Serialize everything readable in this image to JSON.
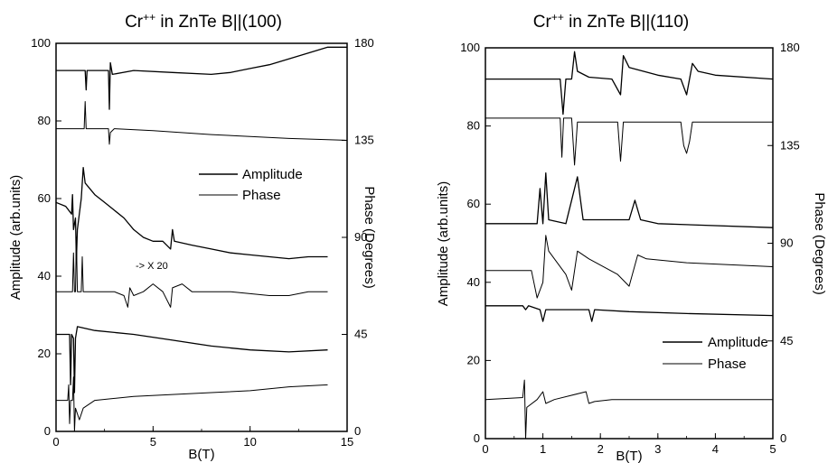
{
  "chart_data": [
    {
      "id": "left",
      "type": "line",
      "title_main": "Cr",
      "title_sup": "++",
      "title_rest": " in ZnTe B||(100)",
      "xlabel": "B(T)",
      "ylabel": "Amplitude (arb.units)",
      "y2label": "Phase (Degrees)",
      "xlim": [
        0,
        15
      ],
      "ylim": [
        0,
        100
      ],
      "y2lim": [
        0,
        180
      ],
      "xticks": [
        "0",
        "5",
        "10",
        "15"
      ],
      "yticks": [
        "0",
        "20",
        "40",
        "60",
        "80",
        "100"
      ],
      "y2ticks": [
        "0",
        "45",
        "90",
        "135",
        "180"
      ],
      "legend": {
        "position": "center-right",
        "entries": [
          "Amplitude",
          "Phase"
        ]
      },
      "annotation": "-> X 20",
      "series": [
        {
          "axis": "y",
          "points": [
            [
              0,
              93
            ],
            [
              1.5,
              93
            ],
            [
              1.55,
              88
            ],
            [
              1.6,
              93
            ],
            [
              2.7,
              93
            ],
            [
              2.75,
              83
            ],
            [
              2.8,
              95
            ],
            [
              2.9,
              92
            ],
            [
              4,
              93
            ],
            [
              6,
              92.5
            ],
            [
              8,
              92
            ],
            [
              9,
              92.5
            ],
            [
              10,
              93.5
            ],
            [
              11,
              94.5
            ],
            [
              12,
              96
            ],
            [
              13,
              97.5
            ],
            [
              14,
              99
            ],
            [
              15,
              99
            ]
          ]
        },
        {
          "axis": "y",
          "points": [
            [
              0,
              78
            ],
            [
              1.45,
              78
            ],
            [
              1.5,
              85
            ],
            [
              1.55,
              78
            ],
            [
              2.7,
              78
            ],
            [
              2.75,
              74
            ],
            [
              2.8,
              77
            ],
            [
              3,
              78
            ],
            [
              5,
              77.5
            ],
            [
              8,
              76.5
            ],
            [
              10,
              76
            ],
            [
              12,
              75.5
            ],
            [
              15,
              75
            ]
          ]
        },
        {
          "axis": "y",
          "points": [
            [
              0,
              59
            ],
            [
              0.5,
              58
            ],
            [
              0.8,
              56
            ],
            [
              0.85,
              61
            ],
            [
              0.9,
              52
            ],
            [
              1.0,
              55
            ],
            [
              1.05,
              44
            ],
            [
              1.1,
              52
            ],
            [
              1.3,
              60
            ],
            [
              1.4,
              68
            ],
            [
              1.5,
              64
            ],
            [
              2,
              61
            ],
            [
              2.5,
              59
            ],
            [
              3,
              57
            ],
            [
              3.5,
              55
            ],
            [
              4,
              52
            ],
            [
              4.5,
              50
            ],
            [
              5,
              49
            ],
            [
              5.5,
              49
            ],
            [
              5.9,
              47
            ],
            [
              6,
              52
            ],
            [
              6.1,
              49
            ],
            [
              7,
              48
            ],
            [
              8,
              47
            ],
            [
              9,
              46
            ],
            [
              10,
              45.5
            ],
            [
              11,
              45
            ],
            [
              12,
              44.5
            ],
            [
              13,
              45
            ],
            [
              14,
              45
            ]
          ]
        },
        {
          "axis": "y",
          "points": [
            [
              0,
              36
            ],
            [
              0.85,
              36
            ],
            [
              0.9,
              46
            ],
            [
              0.95,
              36
            ],
            [
              1.0,
              36
            ],
            [
              1.05,
              50
            ],
            [
              1.1,
              36
            ],
            [
              1.3,
              36
            ],
            [
              1.35,
              45
            ],
            [
              1.4,
              36
            ],
            [
              2.7,
              36
            ],
            [
              3,
              36
            ],
            [
              3.5,
              35
            ],
            [
              3.7,
              32
            ],
            [
              3.8,
              37
            ],
            [
              4,
              35
            ],
            [
              4.5,
              36
            ],
            [
              5,
              38
            ],
            [
              5.5,
              36
            ],
            [
              5.9,
              32
            ],
            [
              6,
              37
            ],
            [
              6.5,
              38
            ],
            [
              7,
              36
            ],
            [
              8,
              36
            ],
            [
              9,
              36
            ],
            [
              10,
              35.5
            ],
            [
              11,
              35
            ],
            [
              12,
              35
            ],
            [
              13,
              36
            ],
            [
              14,
              36
            ]
          ]
        },
        {
          "axis": "y",
          "points": [
            [
              0,
              25
            ],
            [
              0.7,
              25
            ],
            [
              0.75,
              12
            ],
            [
              0.8,
              25
            ],
            [
              0.9,
              24
            ],
            [
              0.95,
              10
            ],
            [
              1.0,
              24
            ],
            [
              1.1,
              27
            ],
            [
              2,
              26
            ],
            [
              4,
              25
            ],
            [
              6,
              23.5
            ],
            [
              8,
              22
            ],
            [
              10,
              21
            ],
            [
              12,
              20.5
            ],
            [
              14,
              21
            ]
          ]
        },
        {
          "axis": "y",
          "points": [
            [
              0,
              8
            ],
            [
              0.6,
              8
            ],
            [
              0.65,
              12
            ],
            [
              0.7,
              2
            ],
            [
              0.75,
              8
            ],
            [
              0.85,
              8
            ],
            [
              0.9,
              14
            ],
            [
              0.95,
              0
            ],
            [
              1.0,
              6
            ],
            [
              1.2,
              3
            ],
            [
              1.4,
              6
            ],
            [
              2,
              8
            ],
            [
              4,
              9
            ],
            [
              6,
              9.5
            ],
            [
              8,
              10
            ],
            [
              10,
              10.5
            ],
            [
              12,
              11.5
            ],
            [
              14,
              12
            ]
          ]
        }
      ]
    },
    {
      "id": "right",
      "type": "line",
      "title_main": "Cr",
      "title_sup": "++",
      "title_rest": " in ZnTe B||(110)",
      "xlabel": "B(T)",
      "ylabel": "Amplitude (arb.units)",
      "y2label": "Phase (Degrees)",
      "xlim": [
        0,
        5
      ],
      "ylim": [
        0,
        100
      ],
      "y2lim": [
        0,
        180
      ],
      "xticks": [
        "0",
        "1",
        "2",
        "3",
        "4",
        "5"
      ],
      "yticks": [
        "0",
        "20",
        "40",
        "60",
        "80",
        "100"
      ],
      "y2ticks": [
        "0",
        "45",
        "90",
        "135",
        "180"
      ],
      "legend": {
        "position": "bottom-right",
        "entries": [
          "Amplitude",
          "Phase"
        ]
      },
      "series": [
        {
          "axis": "y",
          "points": [
            [
              0,
              92
            ],
            [
              1.3,
              92
            ],
            [
              1.35,
              83
            ],
            [
              1.4,
              92
            ],
            [
              1.5,
              92
            ],
            [
              1.55,
              99
            ],
            [
              1.6,
              94
            ],
            [
              1.8,
              92.5
            ],
            [
              2.2,
              92
            ],
            [
              2.35,
              88
            ],
            [
              2.4,
              98
            ],
            [
              2.5,
              95
            ],
            [
              3,
              93
            ],
            [
              3.4,
              92
            ],
            [
              3.5,
              88
            ],
            [
              3.6,
              96
            ],
            [
              3.7,
              94
            ],
            [
              4,
              93
            ],
            [
              5,
              92
            ]
          ]
        },
        {
          "axis": "y",
          "points": [
            [
              0,
              82
            ],
            [
              1.3,
              82
            ],
            [
              1.33,
              72
            ],
            [
              1.36,
              82
            ],
            [
              1.5,
              82
            ],
            [
              1.55,
              70
            ],
            [
              1.6,
              81
            ],
            [
              2.3,
              81
            ],
            [
              2.35,
              71
            ],
            [
              2.4,
              81
            ],
            [
              3.4,
              81
            ],
            [
              3.45,
              75
            ],
            [
              3.5,
              73
            ],
            [
              3.55,
              76
            ],
            [
              3.6,
              81
            ],
            [
              5,
              81
            ]
          ]
        },
        {
          "axis": "y",
          "points": [
            [
              0,
              55
            ],
            [
              0.9,
              55
            ],
            [
              0.95,
              64
            ],
            [
              1.0,
              55
            ],
            [
              1.05,
              68
            ],
            [
              1.1,
              56
            ],
            [
              1.4,
              55
            ],
            [
              1.6,
              67
            ],
            [
              1.7,
              56
            ],
            [
              2.5,
              56
            ],
            [
              2.6,
              61
            ],
            [
              2.7,
              56
            ],
            [
              3,
              55
            ],
            [
              5,
              54
            ]
          ]
        },
        {
          "axis": "y",
          "points": [
            [
              0,
              43
            ],
            [
              0.8,
              43
            ],
            [
              0.9,
              36
            ],
            [
              1.0,
              40
            ],
            [
              1.05,
              52
            ],
            [
              1.1,
              48
            ],
            [
              1.4,
              42
            ],
            [
              1.5,
              38
            ],
            [
              1.6,
              48
            ],
            [
              1.8,
              46
            ],
            [
              2.3,
              42
            ],
            [
              2.5,
              39
            ],
            [
              2.65,
              47
            ],
            [
              2.8,
              46
            ],
            [
              3.5,
              45
            ],
            [
              5,
              44
            ]
          ]
        },
        {
          "axis": "y",
          "points": [
            [
              0,
              34
            ],
            [
              0.65,
              34
            ],
            [
              0.7,
              33
            ],
            [
              0.75,
              34
            ],
            [
              0.95,
              33
            ],
            [
              1.0,
              30
            ],
            [
              1.05,
              33
            ],
            [
              1.8,
              33
            ],
            [
              1.85,
              30
            ],
            [
              1.9,
              33
            ],
            [
              2.5,
              32.5
            ],
            [
              3.5,
              32
            ],
            [
              5,
              31.5
            ]
          ]
        },
        {
          "axis": "y",
          "points": [
            [
              0,
              10
            ],
            [
              0.65,
              10.5
            ],
            [
              0.68,
              15
            ],
            [
              0.7,
              0
            ],
            [
              0.72,
              8
            ],
            [
              0.9,
              10
            ],
            [
              1.0,
              12
            ],
            [
              1.05,
              9
            ],
            [
              1.2,
              10
            ],
            [
              1.75,
              12
            ],
            [
              1.8,
              9
            ],
            [
              1.9,
              9.5
            ],
            [
              2.2,
              10
            ],
            [
              3,
              10
            ],
            [
              5,
              10
            ]
          ]
        }
      ]
    }
  ],
  "annotation_left": "-> X 20"
}
